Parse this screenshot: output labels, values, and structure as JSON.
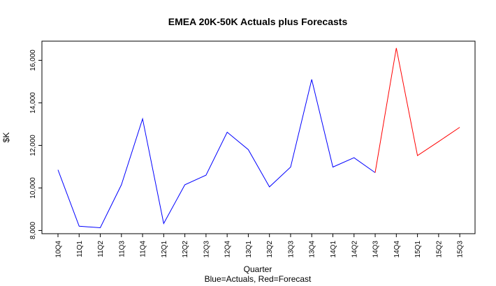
{
  "chart_data": {
    "type": "line",
    "title": "EMEA 20K-50K Actuals plus Forecasts",
    "xlabel": "Quarter",
    "subtitle": "Blue=Actuals, Red=Forecast",
    "ylabel": "$K",
    "ylim": [
      7850,
      16900
    ],
    "yticks": [
      8000,
      10000,
      12000,
      14000,
      16000
    ],
    "ytick_labels": [
      "8,000",
      "10,000",
      "12,000",
      "14,000",
      "16,000"
    ],
    "categories": [
      "10Q4",
      "11Q1",
      "11Q2",
      "11Q3",
      "11Q4",
      "12Q1",
      "12Q2",
      "12Q3",
      "12Q4",
      "13Q1",
      "13Q2",
      "13Q3",
      "13Q4",
      "14Q1",
      "14Q2",
      "14Q3",
      "14Q4",
      "15Q1",
      "15Q2",
      "15Q3"
    ],
    "series": [
      {
        "name": "Actuals",
        "color": "#0000ff",
        "values": [
          10850,
          8200,
          8130,
          10150,
          13250,
          8330,
          10150,
          10600,
          12620,
          11800,
          10050,
          10980,
          15100,
          10980,
          11420,
          10720,
          null,
          null,
          null,
          null
        ]
      },
      {
        "name": "Forecast",
        "color": "#ff0000",
        "values": [
          null,
          null,
          null,
          null,
          null,
          null,
          null,
          null,
          null,
          null,
          null,
          null,
          null,
          null,
          null,
          10720,
          16580,
          11520,
          12180,
          12850
        ]
      }
    ]
  }
}
